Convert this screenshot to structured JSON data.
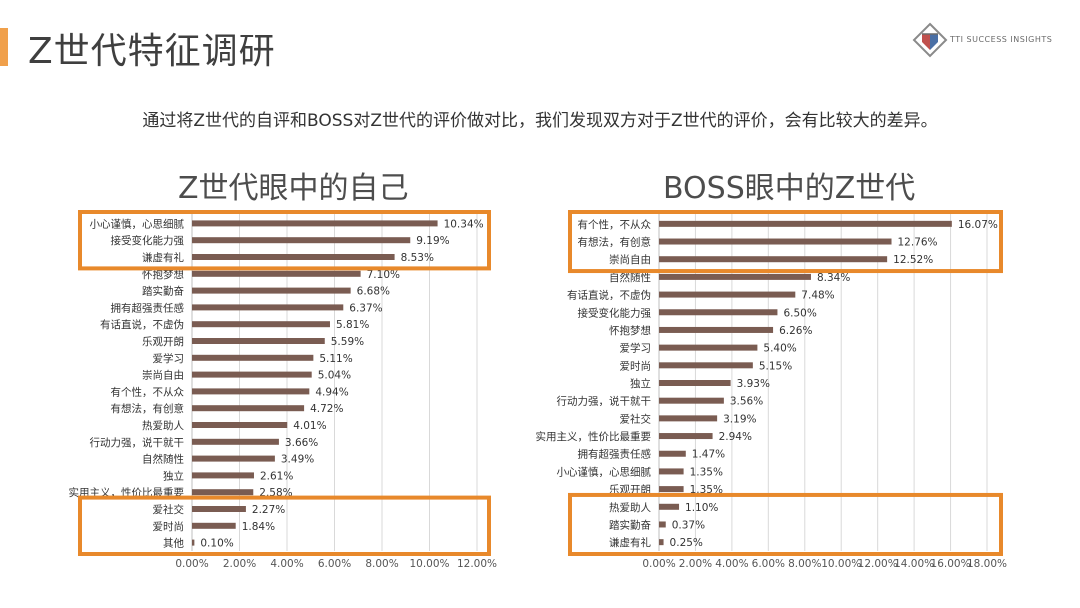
{
  "header": {
    "title": "Z世代特征调研",
    "logo_text": "TTI SUCCESS INSIGHTS"
  },
  "subtitle": "通过将Z世代的自评和BOSS对Z世代的评价做对比，我们发现双方对于Z世代的评价，会有比较大的差异。",
  "colors": {
    "bar": "#7a5c52",
    "highlight_box": "#e8892b",
    "accent": "#f0a04b",
    "grid": "#d9d9d9"
  },
  "chart_data": [
    {
      "type": "bar",
      "orientation": "horizontal",
      "title": "Z世代眼中的自己",
      "categories": [
        "小心谨慎，心思细腻",
        "接受变化能力强",
        "谦虚有礼",
        "怀抱梦想",
        "踏实勤奋",
        "拥有超强责任感",
        "有话直说，不虚伪",
        "乐观开朗",
        "爱学习",
        "崇尚自由",
        "有个性，不从众",
        "有想法，有创意",
        "热爱助人",
        "行动力强，说干就干",
        "自然随性",
        "独立",
        "实用主义，性价比最重要",
        "爱社交",
        "爱时尚",
        "其他"
      ],
      "values": [
        10.34,
        9.19,
        8.53,
        7.1,
        6.68,
        6.37,
        5.81,
        5.59,
        5.11,
        5.04,
        4.94,
        4.72,
        4.01,
        3.66,
        3.49,
        2.61,
        2.58,
        2.27,
        1.84,
        0.1
      ],
      "value_labels": [
        "10.34%",
        "9.19%",
        "8.53%",
        "7.10%",
        "6.68%",
        "6.37%",
        "5.81%",
        "5.59%",
        "5.11%",
        "5.04%",
        "4.94%",
        "4.72%",
        "4.01%",
        "3.66%",
        "3.49%",
        "2.61%",
        "2.58%",
        "2.27%",
        "1.84%",
        "0.10%"
      ],
      "xlim": [
        0,
        12
      ],
      "x_ticks": [
        "0.00%",
        "2.00%",
        "4.00%",
        "6.00%",
        "8.00%",
        "10.00%",
        "12.00%"
      ],
      "grid": true,
      "highlighted_groups": [
        [
          0,
          2
        ],
        [
          17,
          19
        ]
      ]
    },
    {
      "type": "bar",
      "orientation": "horizontal",
      "title": "BOSS眼中的Z世代",
      "categories": [
        "有个性，不从众",
        "有想法，有创意",
        "崇尚自由",
        "自然随性",
        "有话直说，不虚伪",
        "接受变化能力强",
        "怀抱梦想",
        "爱学习",
        "爱时尚",
        "独立",
        "行动力强，说干就干",
        "爱社交",
        "实用主义，性价比最重要",
        "拥有超强责任感",
        "小心谨慎，心思细腻",
        "乐观开朗",
        "热爱助人",
        "踏实勤奋",
        "谦虚有礼"
      ],
      "values": [
        16.07,
        12.76,
        12.52,
        8.34,
        7.48,
        6.5,
        6.26,
        5.4,
        5.15,
        3.93,
        3.56,
        3.19,
        2.94,
        1.47,
        1.35,
        1.35,
        1.1,
        0.37,
        0.25
      ],
      "value_labels": [
        "16.07%",
        "12.76%",
        "12.52%",
        "8.34%",
        "7.48%",
        "6.50%",
        "6.26%",
        "5.40%",
        "5.15%",
        "3.93%",
        "3.56%",
        "3.19%",
        "2.94%",
        "1.47%",
        "1.35%",
        "1.35%",
        "1.10%",
        "0.37%",
        "0.25%"
      ],
      "xlim": [
        0,
        18
      ],
      "x_ticks": [
        "0.00%",
        "2.00%",
        "4.00%",
        "6.00%",
        "8.00%",
        "10.00%",
        "12.00%",
        "14.00%",
        "16.00%",
        "18.00%"
      ],
      "grid": true,
      "highlighted_groups": [
        [
          0,
          2
        ],
        [
          16,
          18
        ]
      ]
    }
  ]
}
